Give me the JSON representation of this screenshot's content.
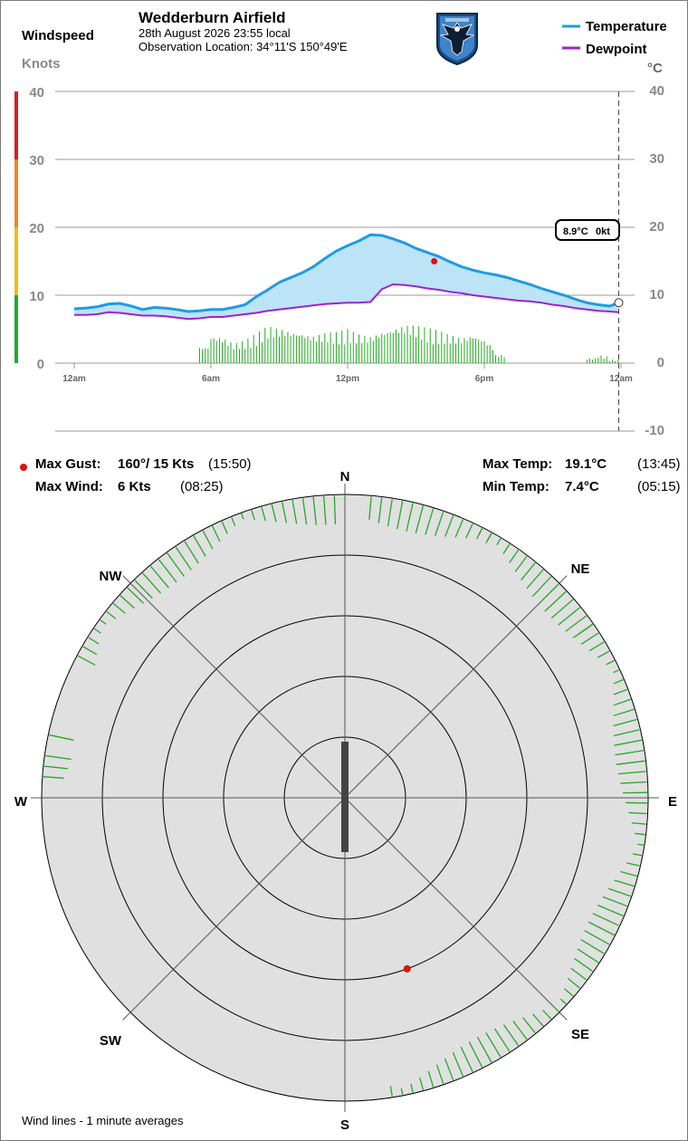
{
  "header": {
    "windspeed_label": "Windspeed",
    "knots_label": "Knots",
    "title": "Wedderburn Airfield",
    "date_line": "28th August 2026  23:55 local",
    "location_line": "Observation Location: 34°11'S 150°49'E",
    "celsius_label": "°C",
    "logo": "club-eagle-crest-icon"
  },
  "legend": [
    {
      "name": "Temperature",
      "color": "#1e9be4"
    },
    {
      "name": "Dewpoint",
      "color": "#a020d0"
    }
  ],
  "readout": {
    "temp": "8.9°C",
    "wind": "0kt"
  },
  "stats": {
    "max_gust_label": "Max Gust:",
    "max_gust_value": "160°/ 15 Kts",
    "max_gust_time": "(15:50)",
    "max_wind_label": "Max Wind:",
    "max_wind_value": "6 Kts",
    "max_wind_time": "(08:25)",
    "max_temp_label": "Max Temp:",
    "max_temp_value": "19.1°C",
    "max_temp_time": "(13:45)",
    "min_temp_label": "Min Temp:",
    "min_temp_value": "7.4°C",
    "min_temp_time": "(05:15)"
  },
  "footer": {
    "note": "Wind lines - 1 minute averages"
  },
  "colors": {
    "temperature": "#1e9be4",
    "dewpoint": "#a020d0",
    "wind_bars": "#22aa22",
    "gust_marker": "#dd1111",
    "fill": "#bde3f7",
    "compass_bg": "#e0e0e0"
  },
  "chart_data": [
    {
      "type": "line",
      "x_ticks": [
        "12am",
        "6am",
        "12pm",
        "6pm",
        "12am"
      ],
      "left_axis": {
        "ticks": [
          0,
          10,
          20,
          30,
          40
        ],
        "ylim": [
          0,
          40
        ]
      },
      "right_axis": {
        "ticks": [
          -10,
          0,
          10,
          20,
          30,
          40
        ],
        "ylim": [
          -10,
          40
        ]
      },
      "x_hours": [
        0,
        0.5,
        1,
        1.5,
        2,
        2.5,
        3,
        3.5,
        4,
        4.5,
        5,
        5.5,
        6,
        6.5,
        7,
        7.5,
        8,
        8.5,
        9,
        9.5,
        10,
        10.5,
        11,
        11.5,
        12,
        12.5,
        13,
        13.5,
        14,
        14.5,
        15,
        15.5,
        16,
        16.5,
        17,
        17.5,
        18,
        18.5,
        19,
        19.5,
        20,
        20.5,
        21,
        21.5,
        22,
        22.5,
        23,
        23.5,
        23.9
      ],
      "series": [
        {
          "name": "Temperature",
          "values": [
            8.0,
            8.1,
            8.3,
            8.7,
            8.8,
            8.4,
            7.9,
            8.2,
            8.1,
            7.9,
            7.6,
            7.7,
            7.9,
            7.9,
            8.2,
            8.6,
            9.8,
            10.8,
            11.9,
            12.6,
            13.3,
            14.2,
            15.4,
            16.5,
            17.3,
            18.0,
            18.9,
            18.8,
            18.3,
            17.7,
            16.9,
            16.3,
            15.7,
            14.9,
            14.2,
            13.7,
            13.3,
            13.0,
            12.6,
            12.1,
            11.6,
            11.0,
            10.5,
            10.0,
            9.4,
            8.9,
            8.6,
            8.4,
            8.9
          ]
        },
        {
          "name": "Dewpoint",
          "values": [
            7.1,
            7.1,
            7.2,
            7.5,
            7.4,
            7.2,
            7.0,
            7.0,
            6.9,
            6.7,
            6.5,
            6.6,
            6.8,
            6.8,
            7.0,
            7.2,
            7.4,
            7.7,
            7.9,
            8.1,
            8.3,
            8.5,
            8.7,
            8.8,
            8.9,
            8.9,
            9.0,
            10.9,
            11.6,
            11.5,
            11.3,
            11.0,
            10.8,
            10.5,
            10.3,
            10.0,
            9.8,
            9.6,
            9.4,
            9.2,
            9.1,
            8.9,
            8.6,
            8.4,
            8.1,
            7.9,
            7.7,
            7.6,
            7.5
          ]
        }
      ],
      "wind_speed_knots": [
        0,
        0,
        0,
        0,
        0,
        0,
        0,
        0,
        0,
        0,
        0,
        0,
        4.1,
        3.9,
        2.9,
        3.4,
        4.4,
        5.5,
        5.2,
        4.9,
        4.6,
        4.1,
        4.5,
        4.6,
        5.0,
        4.3,
        4.0,
        4.8,
        5.3,
        5.8,
        5.6,
        5.2,
        4.8,
        4.2,
        3.8,
        4.3,
        3.6,
        2.1,
        0,
        0,
        0,
        0,
        0,
        0,
        0,
        0,
        1.2,
        0.9,
        0
      ],
      "max_gust": {
        "hour": 15.8,
        "knots": 15
      }
    },
    {
      "type": "scatter",
      "polar": true,
      "compass_labels": [
        "N",
        "NE",
        "E",
        "SE",
        "S",
        "SW",
        "W",
        "NW"
      ],
      "ring_knots": [
        5,
        10,
        15,
        20,
        25
      ],
      "wind_line_directions_deg": [
        0,
        27,
        29,
        55,
        274,
        276,
        278,
        282,
        298,
        300,
        302,
        304,
        306,
        308,
        310,
        312,
        314,
        316,
        318,
        320,
        322,
        324,
        326,
        328,
        330,
        332,
        334,
        336,
        338,
        340,
        342,
        344,
        346,
        348,
        350,
        352,
        354,
        356,
        358,
        5,
        7,
        9,
        11,
        13,
        15,
        17,
        19,
        21,
        23,
        25,
        27,
        29,
        31,
        33,
        35,
        37,
        39,
        41,
        43,
        45,
        47,
        49,
        51,
        53,
        55,
        57,
        59,
        61,
        63,
        65,
        67,
        69,
        71,
        73,
        75,
        77,
        79,
        81,
        83,
        85,
        87,
        89,
        91,
        93,
        95,
        97,
        99,
        101,
        103,
        105,
        107,
        109,
        111,
        113,
        115,
        117,
        119,
        121,
        123,
        125,
        127,
        129,
        131,
        133,
        135,
        137,
        139,
        141,
        143,
        145,
        147,
        149,
        151,
        153,
        155,
        157,
        159,
        161,
        163,
        165,
        167,
        169,
        171
      ],
      "current_wind": {
        "direction_deg": 0,
        "knots": 0
      },
      "max_gust": {
        "direction_deg": 160,
        "knots": 15
      }
    }
  ]
}
